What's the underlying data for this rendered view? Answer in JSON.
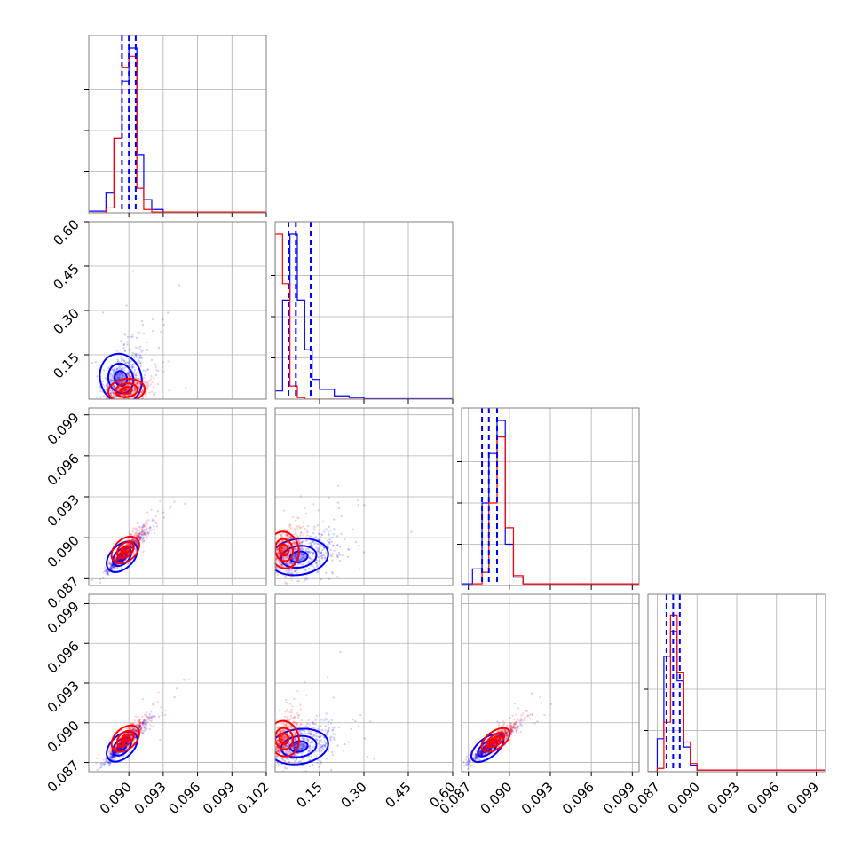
{
  "chart_data": {
    "type": "scatter",
    "subtype": "corner-plot",
    "title": "",
    "params": 4,
    "series": [
      {
        "name": "",
        "color": "#0000ff"
      },
      {
        "name": "",
        "color": "#ff0000"
      }
    ],
    "quantile_lines_color": "#0000ff",
    "axes": [
      {
        "range": [
          0.0865,
          0.102
        ],
        "ticks": [
          0.09,
          0.093,
          0.096,
          0.099,
          0.102
        ],
        "tick_labels": [
          "0.090",
          "0.093",
          "0.096",
          "0.099",
          "0.102"
        ]
      },
      {
        "range": [
          0.0,
          0.6
        ],
        "ticks": [
          0.15,
          0.3,
          0.45,
          0.6
        ],
        "tick_labels": [
          "0.15",
          "0.30",
          "0.45",
          "0.60"
        ]
      },
      {
        "range": [
          0.0865,
          0.0995
        ],
        "ticks": [
          0.087,
          0.09,
          0.093,
          0.096,
          0.099
        ],
        "tick_labels": [
          "0.087",
          "0.090",
          "0.093",
          "0.096",
          "0.099"
        ]
      },
      {
        "range": [
          0.0863,
          0.0997
        ],
        "ticks": [
          0.087,
          0.09,
          0.093,
          0.096,
          0.099
        ],
        "tick_labels": [
          "0.087",
          "0.090",
          "0.093",
          "0.096",
          "0.099"
        ]
      }
    ],
    "histograms": [
      {
        "blue_q": [
          0.0894,
          0.09,
          0.0906
        ],
        "blue": [
          [
            0.0865,
            1
          ],
          [
            0.088,
            12
          ],
          [
            0.0887,
            45
          ],
          [
            0.0894,
            80
          ],
          [
            0.09,
            100
          ],
          [
            0.0907,
            35
          ],
          [
            0.0913,
            8
          ],
          [
            0.092,
            2
          ],
          [
            0.093,
            0.5
          ],
          [
            0.102,
            0
          ]
        ],
        "red": [
          [
            0.0865,
            0
          ],
          [
            0.088,
            3
          ],
          [
            0.0887,
            45
          ],
          [
            0.0894,
            88
          ],
          [
            0.09,
            95
          ],
          [
            0.0907,
            15
          ],
          [
            0.0913,
            2
          ],
          [
            0.092,
            0.5
          ],
          [
            0.102,
            0
          ]
        ]
      },
      {
        "blue_q": [
          0.045,
          0.07,
          0.12
        ],
        "blue": [
          [
            0.0,
            5
          ],
          [
            0.025,
            60
          ],
          [
            0.05,
            100
          ],
          [
            0.075,
            60
          ],
          [
            0.1,
            30
          ],
          [
            0.125,
            12
          ],
          [
            0.15,
            6
          ],
          [
            0.2,
            2
          ],
          [
            0.25,
            1
          ],
          [
            0.3,
            0.3
          ],
          [
            0.6,
            0
          ]
        ],
        "red": [
          [
            0.0,
            100
          ],
          [
            0.025,
            70
          ],
          [
            0.05,
            8
          ],
          [
            0.075,
            1
          ],
          [
            0.1,
            0
          ],
          [
            0.6,
            0
          ]
        ]
      },
      {
        "blue_q": [
          0.088,
          0.0885,
          0.0891
        ],
        "blue": [
          [
            0.0865,
            1
          ],
          [
            0.0873,
            10
          ],
          [
            0.088,
            50
          ],
          [
            0.0885,
            80
          ],
          [
            0.0891,
            100
          ],
          [
            0.0897,
            25
          ],
          [
            0.0903,
            5
          ],
          [
            0.091,
            1
          ],
          [
            0.0995,
            0
          ]
        ],
        "red": [
          [
            0.0865,
            0
          ],
          [
            0.0873,
            1
          ],
          [
            0.088,
            8
          ],
          [
            0.0885,
            50
          ],
          [
            0.0891,
            90
          ],
          [
            0.0897,
            35
          ],
          [
            0.0903,
            6
          ],
          [
            0.091,
            1
          ],
          [
            0.0995,
            0
          ]
        ]
      },
      {
        "blue_q": [
          0.0877,
          0.0882,
          0.0887
        ],
        "blue": [
          [
            0.0863,
            0
          ],
          [
            0.087,
            20
          ],
          [
            0.0875,
            70
          ],
          [
            0.088,
            85
          ],
          [
            0.0885,
            55
          ],
          [
            0.089,
            15
          ],
          [
            0.0895,
            4
          ],
          [
            0.09,
            1
          ],
          [
            0.0997,
            0
          ]
        ],
        "red": [
          [
            0.0863,
            0
          ],
          [
            0.087,
            2
          ],
          [
            0.0875,
            30
          ],
          [
            0.088,
            95
          ],
          [
            0.0885,
            60
          ],
          [
            0.089,
            18
          ],
          [
            0.0895,
            5
          ],
          [
            0.09,
            1
          ],
          [
            0.0997,
            0
          ]
        ]
      }
    ],
    "scatter_clouds": [
      {
        "pair": [
          0,
          1
        ],
        "blue": {
          "cx": 0.0893,
          "cy": 0.07,
          "sx": 0.0009,
          "sy": 0.045,
          "rho": 0.4
        },
        "red": {
          "cx": 0.0898,
          "cy": 0.03,
          "sx": 0.0008,
          "sy": 0.02,
          "rho": 0.3
        }
      },
      {
        "pair": [
          0,
          2
        ],
        "blue": {
          "cx": 0.0894,
          "cy": 0.0886,
          "sx": 0.0008,
          "sy": 0.0007,
          "rho": 0.95
        },
        "red": {
          "cx": 0.0897,
          "cy": 0.0891,
          "sx": 0.0007,
          "sy": 0.0006,
          "rho": 0.9
        }
      },
      {
        "pair": [
          1,
          2
        ],
        "blue": {
          "cx": 0.08,
          "cy": 0.0886,
          "sx": 0.05,
          "sy": 0.0007,
          "rho": 0.4
        },
        "red": {
          "cx": 0.03,
          "cy": 0.0891,
          "sx": 0.025,
          "sy": 0.0007,
          "rho": 0.3
        }
      },
      {
        "pair": [
          0,
          3
        ],
        "blue": {
          "cx": 0.0894,
          "cy": 0.0882,
          "sx": 0.0008,
          "sy": 0.0007,
          "rho": 0.95
        },
        "red": {
          "cx": 0.0897,
          "cy": 0.0888,
          "sx": 0.0007,
          "sy": 0.0006,
          "rho": 0.9
        }
      },
      {
        "pair": [
          1,
          3
        ],
        "blue": {
          "cx": 0.08,
          "cy": 0.0882,
          "sx": 0.05,
          "sy": 0.0007,
          "rho": 0.4
        },
        "red": {
          "cx": 0.03,
          "cy": 0.0888,
          "sx": 0.025,
          "sy": 0.0007,
          "rho": 0.3
        }
      },
      {
        "pair": [
          2,
          3
        ],
        "blue": {
          "cx": 0.0884,
          "cy": 0.0881,
          "sx": 0.0007,
          "sy": 0.0006,
          "rho": 0.95
        },
        "red": {
          "cx": 0.089,
          "cy": 0.0887,
          "sx": 0.0006,
          "sy": 0.0005,
          "rho": 0.9
        }
      }
    ],
    "grid": true,
    "legend": "none"
  }
}
